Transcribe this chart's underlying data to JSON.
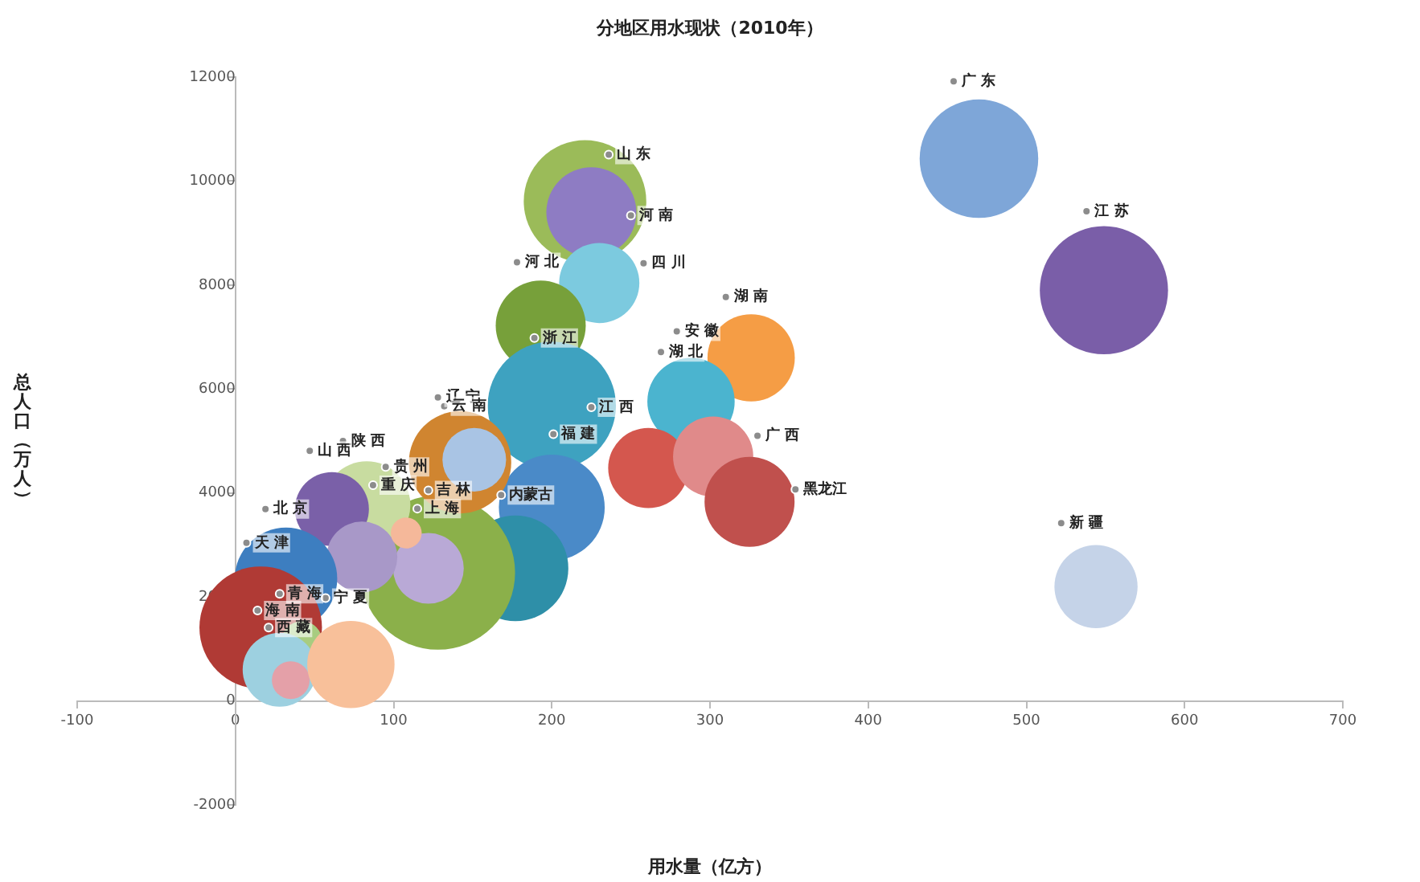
{
  "chart_data": {
    "type": "bubble",
    "title": "分地区用水现状（2010年）",
    "xlabel": "用水量（亿方）",
    "ylabel": "总人口（万人）",
    "xlim": [
      -100,
      700
    ],
    "xticks": [
      -100,
      0,
      100,
      200,
      300,
      400,
      500,
      600,
      700
    ],
    "ylim": [
      -2000,
      12000
    ],
    "yticks": [
      -2000,
      0,
      2000,
      4000,
      6000,
      8000,
      10000,
      12000
    ],
    "grid": false,
    "legend": false,
    "series": [
      {
        "x": [
          470,
          549,
          544,
          221,
          225,
          230,
          193,
          326,
          288,
          200,
          261,
          302,
          325,
          200,
          177,
          128,
          122,
          142,
          151,
          83,
          61,
          80,
          108,
          32,
          16,
          42,
          28,
          35,
          73
        ],
        "values": [
          10430,
          7900,
          2200,
          9610,
          9400,
          8040,
          7220,
          6600,
          5760,
          5680,
          4480,
          4700,
          3830,
          3720,
          2550,
          2470,
          2550,
          4590,
          4640,
          3770,
          3690,
          2770,
          3230,
          2350,
          1410,
          1140,
          600,
          400,
          700
        ],
        "sizes": [
          0.59,
          0.69,
          0.29,
          0.63,
          0.34,
          0.27,
          0.34,
          0.32,
          0.32,
          0.69,
          0.27,
          0.27,
          0.34,
          0.47,
          0.47,
          1,
          0.21,
          0.44,
          0.17,
          0.32,
          0.23,
          0.21,
          0.04,
          0.44,
          0.63,
          0.07,
          0.23,
          0.06,
          0.32
        ],
        "colors": [
          "#7ea6d8",
          "#7a5ea8",
          "#c5d3e8",
          "#9bbb59",
          "#8e7cc3",
          "#7ccadf",
          "#77a03a",
          "#f59d45",
          "#4bb4cf",
          "#3ea2c0",
          "#d4574e",
          "#e08a8a",
          "#c0504d",
          "#4a8ac8",
          "#2e8fa8",
          "#8bb04a",
          "#b9a9d6",
          "#d08530",
          "#a9c4e4",
          "#c8dca0",
          "#7a60a8",
          "#a898c8",
          "#f5b89a",
          "#3d7ec0",
          "#b03a35",
          "#a8cc80",
          "#9dd0e0",
          "#e4a0a8",
          "#f8c09a"
        ]
      },
      {
        "type": "scatter",
        "marker": "circle",
        "color": "#8c8c8c",
        "x": [
          454,
          538,
          522,
          236,
          250,
          258,
          178,
          310,
          279,
          269,
          189,
          128,
          132,
          225,
          201,
          330,
          354,
          168,
          47,
          68,
          95,
          87,
          122,
          115,
          19,
          7,
          28,
          57,
          14,
          21
        ],
        "values": [
          11920,
          9420,
          3420,
          10510,
          9340,
          8420,
          8440,
          7770,
          7110,
          6710,
          6980,
          5840,
          5670,
          5650,
          5130,
          5100,
          4070,
          3960,
          4810,
          5000,
          4500,
          4150,
          4050,
          3700,
          3690,
          3040,
          2060,
          1980,
          1740,
          1410
        ]
      }
    ],
    "annotations": [
      {
        "text": "广 东",
        "x": 454,
        "y": 11920
      },
      {
        "text": "江 苏",
        "x": 538,
        "y": 9420
      },
      {
        "text": "新 疆",
        "x": 522,
        "y": 3420
      },
      {
        "text": "山 东",
        "x": 236,
        "y": 10510
      },
      {
        "text": "河 南",
        "x": 250,
        "y": 9340
      },
      {
        "text": "四 川",
        "x": 258,
        "y": 8420
      },
      {
        "text": "河 北",
        "x": 178,
        "y": 8440
      },
      {
        "text": "湖 南",
        "x": 310,
        "y": 7770
      },
      {
        "text": "安 徽",
        "x": 279,
        "y": 7110
      },
      {
        "text": "湖 北",
        "x": 269,
        "y": 6710
      },
      {
        "text": "浙 江",
        "x": 189,
        "y": 6980
      },
      {
        "text": "辽 宁",
        "x": 128,
        "y": 5840
      },
      {
        "text": "云 南",
        "x": 132,
        "y": 5670
      },
      {
        "text": "江 西",
        "x": 225,
        "y": 5650
      },
      {
        "text": "福 建",
        "x": 201,
        "y": 5130
      },
      {
        "text": "广 西",
        "x": 330,
        "y": 5100
      },
      {
        "text": "黑龙江",
        "x": 354,
        "y": 4070
      },
      {
        "text": "内蒙古",
        "x": 168,
        "y": 3960
      },
      {
        "text": "山 西",
        "x": 47,
        "y": 4810
      },
      {
        "text": "陕 西",
        "x": 68,
        "y": 5000
      },
      {
        "text": "贵 州",
        "x": 95,
        "y": 4500
      },
      {
        "text": "重 庆",
        "x": 87,
        "y": 4150
      },
      {
        "text": "吉 林",
        "x": 122,
        "y": 4050
      },
      {
        "text": "上 海",
        "x": 115,
        "y": 3700
      },
      {
        "text": "北 京",
        "x": 19,
        "y": 3690
      },
      {
        "text": "天 津",
        "x": 7,
        "y": 3040
      },
      {
        "text": "青 海",
        "x": 28,
        "y": 2060
      },
      {
        "text": "宁 夏",
        "x": 57,
        "y": 1980
      },
      {
        "text": "海 南",
        "x": 14,
        "y": 1740
      },
      {
        "text": "西 藏",
        "x": 21,
        "y": 1410
      }
    ]
  }
}
